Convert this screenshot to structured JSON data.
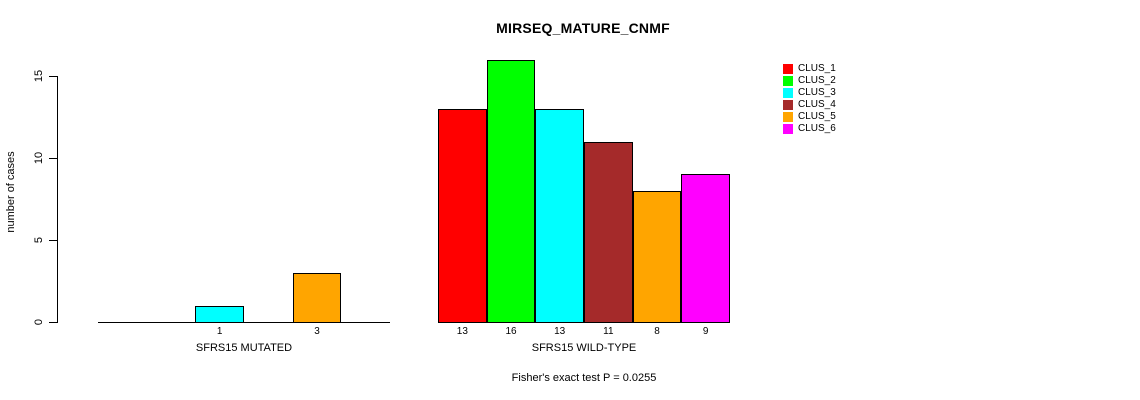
{
  "chart_data": {
    "type": "bar",
    "title": "MIRSEQ_MATURE_CNMF",
    "ylabel": "number of cases",
    "xlabel": "",
    "ylim": [
      0,
      16
    ],
    "yticks": [
      0,
      5,
      10,
      15
    ],
    "grid": false,
    "legend_position": "right",
    "categories": [
      "CLUS_1",
      "CLUS_2",
      "CLUS_3",
      "CLUS_4",
      "CLUS_5",
      "CLUS_6"
    ],
    "colors": [
      "#FF0000",
      "#00FF00",
      "#00FFFF",
      "#A52A2A",
      "#FFA500",
      "#FF00FF"
    ],
    "series": [
      {
        "name": "SFRS15 MUTATED",
        "values": [
          0,
          0,
          1,
          0,
          3,
          0
        ]
      },
      {
        "name": "SFRS15 WILD-TYPE",
        "values": [
          13,
          16,
          13,
          11,
          8,
          9
        ]
      }
    ],
    "bar_labels": [
      [
        "",
        "",
        "1",
        "",
        "3",
        ""
      ],
      [
        "13",
        "16",
        "13",
        "11",
        "8",
        "9"
      ]
    ],
    "annotation": "Fisher's exact test P = 0.0255",
    "text_color": "#000000",
    "background_color": "#FFFFFF"
  }
}
